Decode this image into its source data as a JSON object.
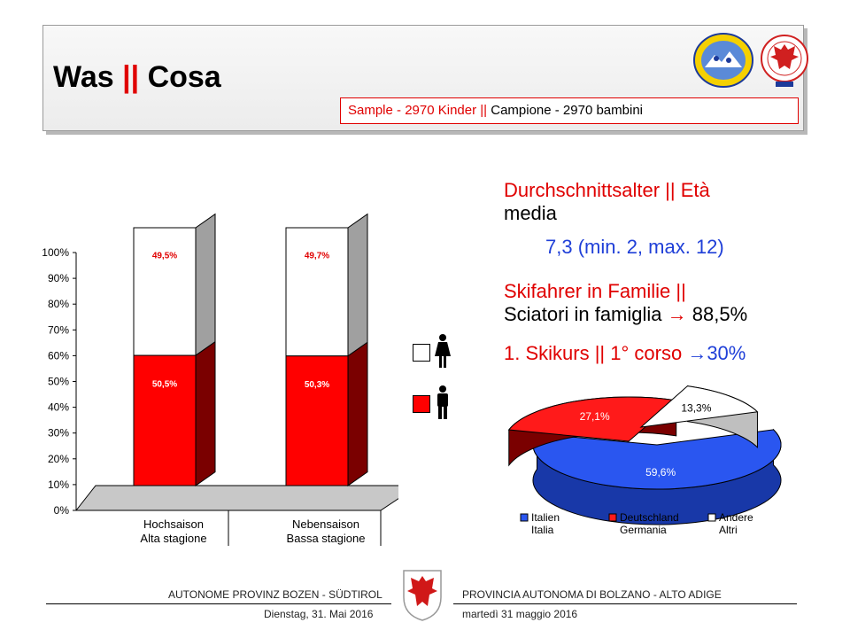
{
  "header": {
    "title_part1": "Was ",
    "title_sep": "||",
    "title_part2": " Cosa",
    "sample_part1": "Sample - 2970 Kinder ",
    "sample_sep": "||",
    "sample_part2": " Campione - 2970 bambini"
  },
  "facts": {
    "age_label_line1": "Durchschnittsalter || Età",
    "age_label_line2": "media",
    "age_value": "7,3 (min. 2, max. 12)",
    "family_line1": "Skifahrer in Familie ||",
    "family_line2": "Sciatori in famiglia",
    "family_value": "88,5%",
    "course_label": "1. Skikurs || 1° corso",
    "course_value": "30%",
    "arrow": "→"
  },
  "footer": {
    "left_top": "AUTONOME PROVINZ BOZEN - SÜDTIROL",
    "left_bottom": "Dienstag, 31. Mai 2016",
    "right_top": "PROVINCIA AUTONOMA DI BOLZANO - ALTO ADIGE",
    "right_bottom": "martedì 31 maggio 2016"
  },
  "logos": {
    "skischool_text": "SÜDTIROLER SKISCHULEN · SCUOLE SCI ALTO ADIGE"
  },
  "icons": {
    "female_icon": "person-skirt-icon",
    "male_icon": "person-icon"
  },
  "colors": {
    "red": "#e00000",
    "blue": "#1f3fd8",
    "gray": "#9a9a9a"
  },
  "chart_data": [
    {
      "type": "bar",
      "stacked": true,
      "categories": [
        [
          "Hochsaison",
          "Alta stagione"
        ],
        [
          "Nebensaison",
          "Bassa stagione"
        ]
      ],
      "series": [
        {
          "key": "male",
          "values": [
            50.5,
            50.3
          ],
          "labels": [
            "50,5%",
            "50,3%"
          ],
          "color": "#ff0000"
        },
        {
          "key": "female",
          "values": [
            49.5,
            49.7
          ],
          "labels": [
            "49,5%",
            "49,7%"
          ],
          "color": "#ffffff"
        }
      ],
      "ylim": [
        0,
        100
      ],
      "yticks": [
        "0%",
        "10%",
        "20%",
        "30%",
        "40%",
        "50%",
        "60%",
        "70%",
        "80%",
        "90%",
        "100%"
      ],
      "legend": "right"
    },
    {
      "type": "pie",
      "slices": [
        {
          "label": "Italien\nItalia",
          "value": 59.6,
          "text": "59,6%",
          "color": "#2a56f0"
        },
        {
          "label": "Deutschland\nGermania",
          "value": 27.1,
          "text": "27,1%",
          "color": "#ff1a1a"
        },
        {
          "label": "Andere\nAltri",
          "value": 13.3,
          "text": "13,3%",
          "color": "#ffffff"
        }
      ],
      "legend": "bottom"
    }
  ]
}
